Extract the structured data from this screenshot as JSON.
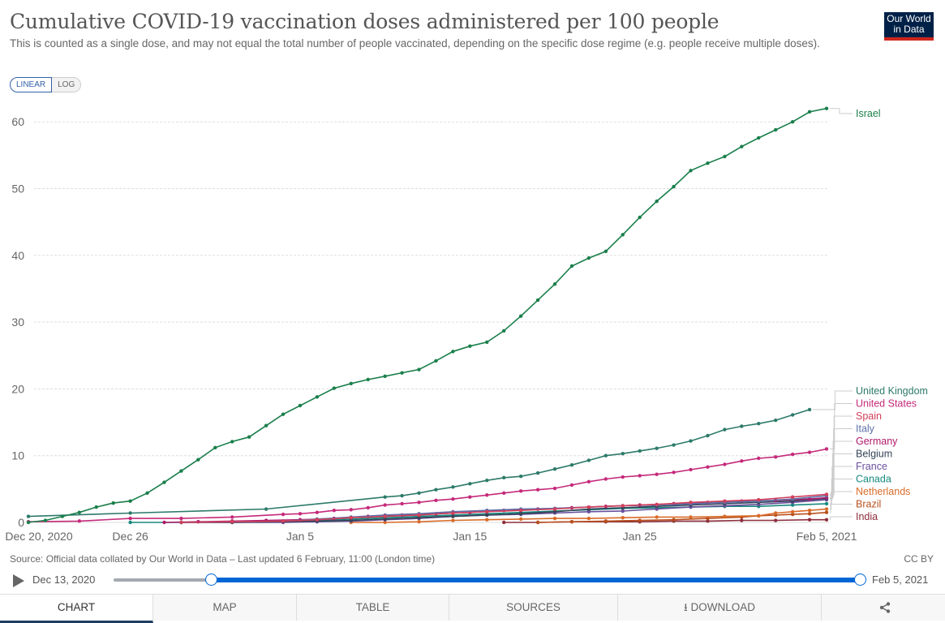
{
  "header": {
    "title": "Cumulative COVID-19 vaccination doses administered per 100 people",
    "subtitle": "This is counted as a single dose, and may not equal the total number of people vaccinated, depending on the specific dose regime (e.g. people receive multiple doses).",
    "logo_line1": "Our World",
    "logo_line2": "in Data"
  },
  "scale_toggle": {
    "linear": "LINEAR",
    "log": "LOG",
    "selected": "LINEAR"
  },
  "footer": {
    "source": "Source: Official data collated by Our World in Data – Last updated 6 February, 11:00 (London time)",
    "license": "CC BY"
  },
  "timeline": {
    "start_label": "Dec 13, 2020",
    "end_label": "Feb 5, 2021",
    "range_start_fraction": 0.13,
    "range_end_fraction": 1.0
  },
  "tabs": [
    {
      "label": "CHART",
      "active": true
    },
    {
      "label": "MAP"
    },
    {
      "label": "TABLE"
    },
    {
      "label": "SOURCES"
    },
    {
      "label": "⭳ DOWNLOAD"
    },
    {
      "label": "share"
    }
  ],
  "chart_data": {
    "type": "line",
    "title": "Cumulative COVID-19 vaccination doses administered per 100 people",
    "xlabel": "",
    "ylabel": "",
    "x_start": "2020-12-20",
    "x_end": "2021-02-05",
    "x_ticks": [
      {
        "day": 0,
        "label": "Dec 20, 2020"
      },
      {
        "day": 6,
        "label": "Dec 26"
      },
      {
        "day": 16,
        "label": "Jan 5"
      },
      {
        "day": 26,
        "label": "Jan 15"
      },
      {
        "day": 36,
        "label": "Jan 25"
      },
      {
        "day": 47,
        "label": "Feb 5, 2021"
      }
    ],
    "y_ticks": [
      0,
      10,
      20,
      30,
      40,
      50,
      60
    ],
    "ylim": [
      0,
      62
    ],
    "grid": true,
    "legend_position": "right-inline",
    "series": [
      {
        "name": "Israel",
        "color": "#1a7f4b",
        "points": [
          [
            0,
            0
          ],
          [
            1,
            0.3
          ],
          [
            2,
            0.9
          ],
          [
            3,
            1.5
          ],
          [
            4,
            2.3
          ],
          [
            5,
            2.9
          ],
          [
            6,
            3.2
          ],
          [
            7,
            4.4
          ],
          [
            8,
            6.0
          ],
          [
            9,
            7.7
          ],
          [
            10,
            9.4
          ],
          [
            11,
            11.2
          ],
          [
            12,
            12.1
          ],
          [
            13,
            12.8
          ],
          [
            14,
            14.5
          ],
          [
            15,
            16.2
          ],
          [
            16,
            17.5
          ],
          [
            17,
            18.8
          ],
          [
            18,
            20.1
          ],
          [
            19,
            20.8
          ],
          [
            20,
            21.4
          ],
          [
            21,
            21.9
          ],
          [
            22,
            22.4
          ],
          [
            23,
            22.9
          ],
          [
            24,
            24.2
          ],
          [
            25,
            25.6
          ],
          [
            26,
            26.4
          ],
          [
            27,
            27.0
          ],
          [
            28,
            28.7
          ],
          [
            29,
            30.9
          ],
          [
            30,
            33.3
          ],
          [
            31,
            35.7
          ],
          [
            32,
            38.4
          ],
          [
            33,
            39.6
          ],
          [
            34,
            40.6
          ],
          [
            35,
            43.1
          ],
          [
            36,
            45.7
          ],
          [
            37,
            48.1
          ],
          [
            38,
            50.3
          ],
          [
            39,
            52.7
          ],
          [
            40,
            53.8
          ],
          [
            41,
            54.8
          ],
          [
            42,
            56.3
          ],
          [
            43,
            57.6
          ],
          [
            44,
            58.8
          ],
          [
            45,
            60.0
          ],
          [
            46,
            61.5
          ],
          [
            47,
            62.0
          ]
        ]
      },
      {
        "name": "United Kingdom",
        "color": "#2d7a6a",
        "points": [
          [
            0,
            0.9
          ],
          [
            6,
            1.4
          ],
          [
            14,
            2.0
          ],
          [
            21,
            3.8
          ],
          [
            22,
            4.0
          ],
          [
            23,
            4.4
          ],
          [
            24,
            4.9
          ],
          [
            25,
            5.3
          ],
          [
            26,
            5.8
          ],
          [
            27,
            6.3
          ],
          [
            28,
            6.7
          ],
          [
            29,
            6.9
          ],
          [
            30,
            7.4
          ],
          [
            31,
            8.0
          ],
          [
            32,
            8.6
          ],
          [
            33,
            9.3
          ],
          [
            34,
            10.0
          ],
          [
            35,
            10.3
          ],
          [
            36,
            10.7
          ],
          [
            37,
            11.1
          ],
          [
            38,
            11.6
          ],
          [
            39,
            12.2
          ],
          [
            40,
            13.0
          ],
          [
            41,
            13.9
          ],
          [
            42,
            14.4
          ],
          [
            43,
            14.8
          ],
          [
            44,
            15.3
          ],
          [
            45,
            16.1
          ],
          [
            46,
            16.9
          ]
        ]
      },
      {
        "name": "United States",
        "color": "#c52a7b",
        "points": [
          [
            0,
            0.1
          ],
          [
            3,
            0.2
          ],
          [
            6,
            0.6
          ],
          [
            9,
            0.6
          ],
          [
            12,
            0.8
          ],
          [
            15,
            1.2
          ],
          [
            16,
            1.3
          ],
          [
            17,
            1.5
          ],
          [
            18,
            1.8
          ],
          [
            19,
            1.9
          ],
          [
            20,
            2.2
          ],
          [
            21,
            2.6
          ],
          [
            22,
            2.8
          ],
          [
            23,
            3.0
          ],
          [
            24,
            3.3
          ],
          [
            25,
            3.5
          ],
          [
            26,
            3.8
          ],
          [
            27,
            4.1
          ],
          [
            28,
            4.4
          ],
          [
            29,
            4.7
          ],
          [
            30,
            4.9
          ],
          [
            31,
            5.1
          ],
          [
            32,
            5.6
          ],
          [
            33,
            6.1
          ],
          [
            34,
            6.5
          ],
          [
            35,
            6.8
          ],
          [
            36,
            7.0
          ],
          [
            37,
            7.2
          ],
          [
            38,
            7.5
          ],
          [
            39,
            7.9
          ],
          [
            40,
            8.3
          ],
          [
            41,
            8.7
          ],
          [
            42,
            9.2
          ],
          [
            43,
            9.6
          ],
          [
            44,
            9.8
          ],
          [
            45,
            10.2
          ],
          [
            46,
            10.5
          ],
          [
            47,
            11.0
          ]
        ]
      },
      {
        "name": "Spain",
        "color": "#d3405b",
        "points": [
          [
            9,
            0.0
          ],
          [
            12,
            0.1
          ],
          [
            15,
            0.2
          ],
          [
            17,
            0.4
          ],
          [
            19,
            0.7
          ],
          [
            21,
            0.9
          ],
          [
            23,
            1.1
          ],
          [
            25,
            1.4
          ],
          [
            27,
            1.6
          ],
          [
            29,
            1.8
          ],
          [
            31,
            2.0
          ],
          [
            33,
            2.3
          ],
          [
            35,
            2.5
          ],
          [
            37,
            2.7
          ],
          [
            39,
            3.0
          ],
          [
            41,
            3.2
          ],
          [
            43,
            3.4
          ],
          [
            45,
            3.8
          ],
          [
            47,
            4.2
          ]
        ]
      },
      {
        "name": "Italy",
        "color": "#5d6fa8",
        "points": [
          [
            9,
            0.0
          ],
          [
            12,
            0.1
          ],
          [
            15,
            0.2
          ],
          [
            17,
            0.5
          ],
          [
            19,
            0.8
          ],
          [
            21,
            1.1
          ],
          [
            23,
            1.3
          ],
          [
            25,
            1.6
          ],
          [
            27,
            1.8
          ],
          [
            29,
            2.0
          ],
          [
            31,
            2.1
          ],
          [
            33,
            2.3
          ],
          [
            35,
            2.5
          ],
          [
            37,
            2.6
          ],
          [
            39,
            2.8
          ],
          [
            41,
            3.0
          ],
          [
            43,
            3.2
          ],
          [
            45,
            3.5
          ],
          [
            47,
            4.0
          ]
        ]
      },
      {
        "name": "Germany",
        "color": "#b0196b",
        "points": [
          [
            8,
            0.0
          ],
          [
            10,
            0.1
          ],
          [
            12,
            0.2
          ],
          [
            14,
            0.3
          ],
          [
            16,
            0.4
          ],
          [
            18,
            0.6
          ],
          [
            20,
            0.9
          ],
          [
            22,
            1.1
          ],
          [
            24,
            1.3
          ],
          [
            26,
            1.5
          ],
          [
            28,
            1.8
          ],
          [
            30,
            2.0
          ],
          [
            32,
            2.2
          ],
          [
            34,
            2.4
          ],
          [
            36,
            2.6
          ],
          [
            38,
            2.8
          ],
          [
            40,
            3.0
          ],
          [
            42,
            3.2
          ],
          [
            44,
            3.3
          ],
          [
            46,
            3.5
          ],
          [
            47,
            3.7
          ]
        ]
      },
      {
        "name": "Belgium",
        "color": "#344458",
        "points": [
          [
            9,
            0.0
          ],
          [
            12,
            0.0
          ],
          [
            15,
            0.1
          ],
          [
            17,
            0.2
          ],
          [
            19,
            0.3
          ],
          [
            21,
            0.5
          ],
          [
            23,
            0.7
          ],
          [
            25,
            0.9
          ],
          [
            27,
            1.1
          ],
          [
            29,
            1.3
          ],
          [
            31,
            1.6
          ],
          [
            33,
            2.0
          ],
          [
            35,
            2.2
          ],
          [
            37,
            2.4
          ],
          [
            39,
            2.6
          ],
          [
            41,
            2.8
          ],
          [
            43,
            3.0
          ],
          [
            45,
            3.2
          ],
          [
            47,
            3.6
          ]
        ]
      },
      {
        "name": "France",
        "color": "#6a4f9c",
        "points": [
          [
            9,
            0.0
          ],
          [
            12,
            0.0
          ],
          [
            15,
            0.0
          ],
          [
            17,
            0.1
          ],
          [
            19,
            0.2
          ],
          [
            21,
            0.4
          ],
          [
            23,
            0.6
          ],
          [
            25,
            0.9
          ],
          [
            27,
            1.1
          ],
          [
            29,
            1.2
          ],
          [
            31,
            1.4
          ],
          [
            33,
            1.6
          ],
          [
            35,
            1.7
          ],
          [
            37,
            2.0
          ],
          [
            39,
            2.3
          ],
          [
            41,
            2.5
          ],
          [
            43,
            2.7
          ],
          [
            45,
            3.0
          ],
          [
            47,
            3.4
          ]
        ]
      },
      {
        "name": "Canada",
        "color": "#17897f",
        "points": [
          [
            6,
            0.0
          ],
          [
            9,
            0.0
          ],
          [
            12,
            0.1
          ],
          [
            15,
            0.2
          ],
          [
            17,
            0.3
          ],
          [
            19,
            0.5
          ],
          [
            21,
            0.7
          ],
          [
            23,
            0.9
          ],
          [
            25,
            1.1
          ],
          [
            27,
            1.3
          ],
          [
            29,
            1.5
          ],
          [
            31,
            1.7
          ],
          [
            33,
            1.9
          ],
          [
            35,
            2.1
          ],
          [
            37,
            2.2
          ],
          [
            39,
            2.3
          ],
          [
            41,
            2.4
          ],
          [
            43,
            2.4
          ],
          [
            45,
            2.6
          ],
          [
            47,
            2.8
          ]
        ]
      },
      {
        "name": "Netherlands",
        "color": "#d96b29",
        "points": [
          [
            19,
            0.0
          ],
          [
            21,
            0.0
          ],
          [
            23,
            0.1
          ],
          [
            25,
            0.3
          ],
          [
            27,
            0.4
          ],
          [
            29,
            0.5
          ],
          [
            31,
            0.6
          ],
          [
            33,
            0.6
          ],
          [
            35,
            0.7
          ],
          [
            37,
            0.8
          ],
          [
            39,
            0.8
          ],
          [
            41,
            0.9
          ],
          [
            43,
            1.0
          ],
          [
            44,
            1.4
          ],
          [
            45,
            1.6
          ],
          [
            46,
            1.8
          ],
          [
            47,
            2.0
          ]
        ]
      },
      {
        "name": "Brazil",
        "color": "#b8501d",
        "points": [
          [
            30,
            0.0
          ],
          [
            32,
            0.1
          ],
          [
            34,
            0.2
          ],
          [
            36,
            0.3
          ],
          [
            38,
            0.4
          ],
          [
            40,
            0.6
          ],
          [
            42,
            0.8
          ],
          [
            43,
            1.0
          ],
          [
            44,
            1.1
          ],
          [
            45,
            1.2
          ],
          [
            46,
            1.3
          ],
          [
            47,
            1.5
          ]
        ]
      },
      {
        "name": "India",
        "color": "#8d2e3c",
        "points": [
          [
            28,
            0.0
          ],
          [
            30,
            0.0
          ],
          [
            32,
            0.1
          ],
          [
            34,
            0.1
          ],
          [
            36,
            0.1
          ],
          [
            38,
            0.2
          ],
          [
            40,
            0.2
          ],
          [
            42,
            0.3
          ],
          [
            44,
            0.3
          ],
          [
            46,
            0.4
          ],
          [
            47,
            0.4
          ]
        ]
      }
    ]
  }
}
